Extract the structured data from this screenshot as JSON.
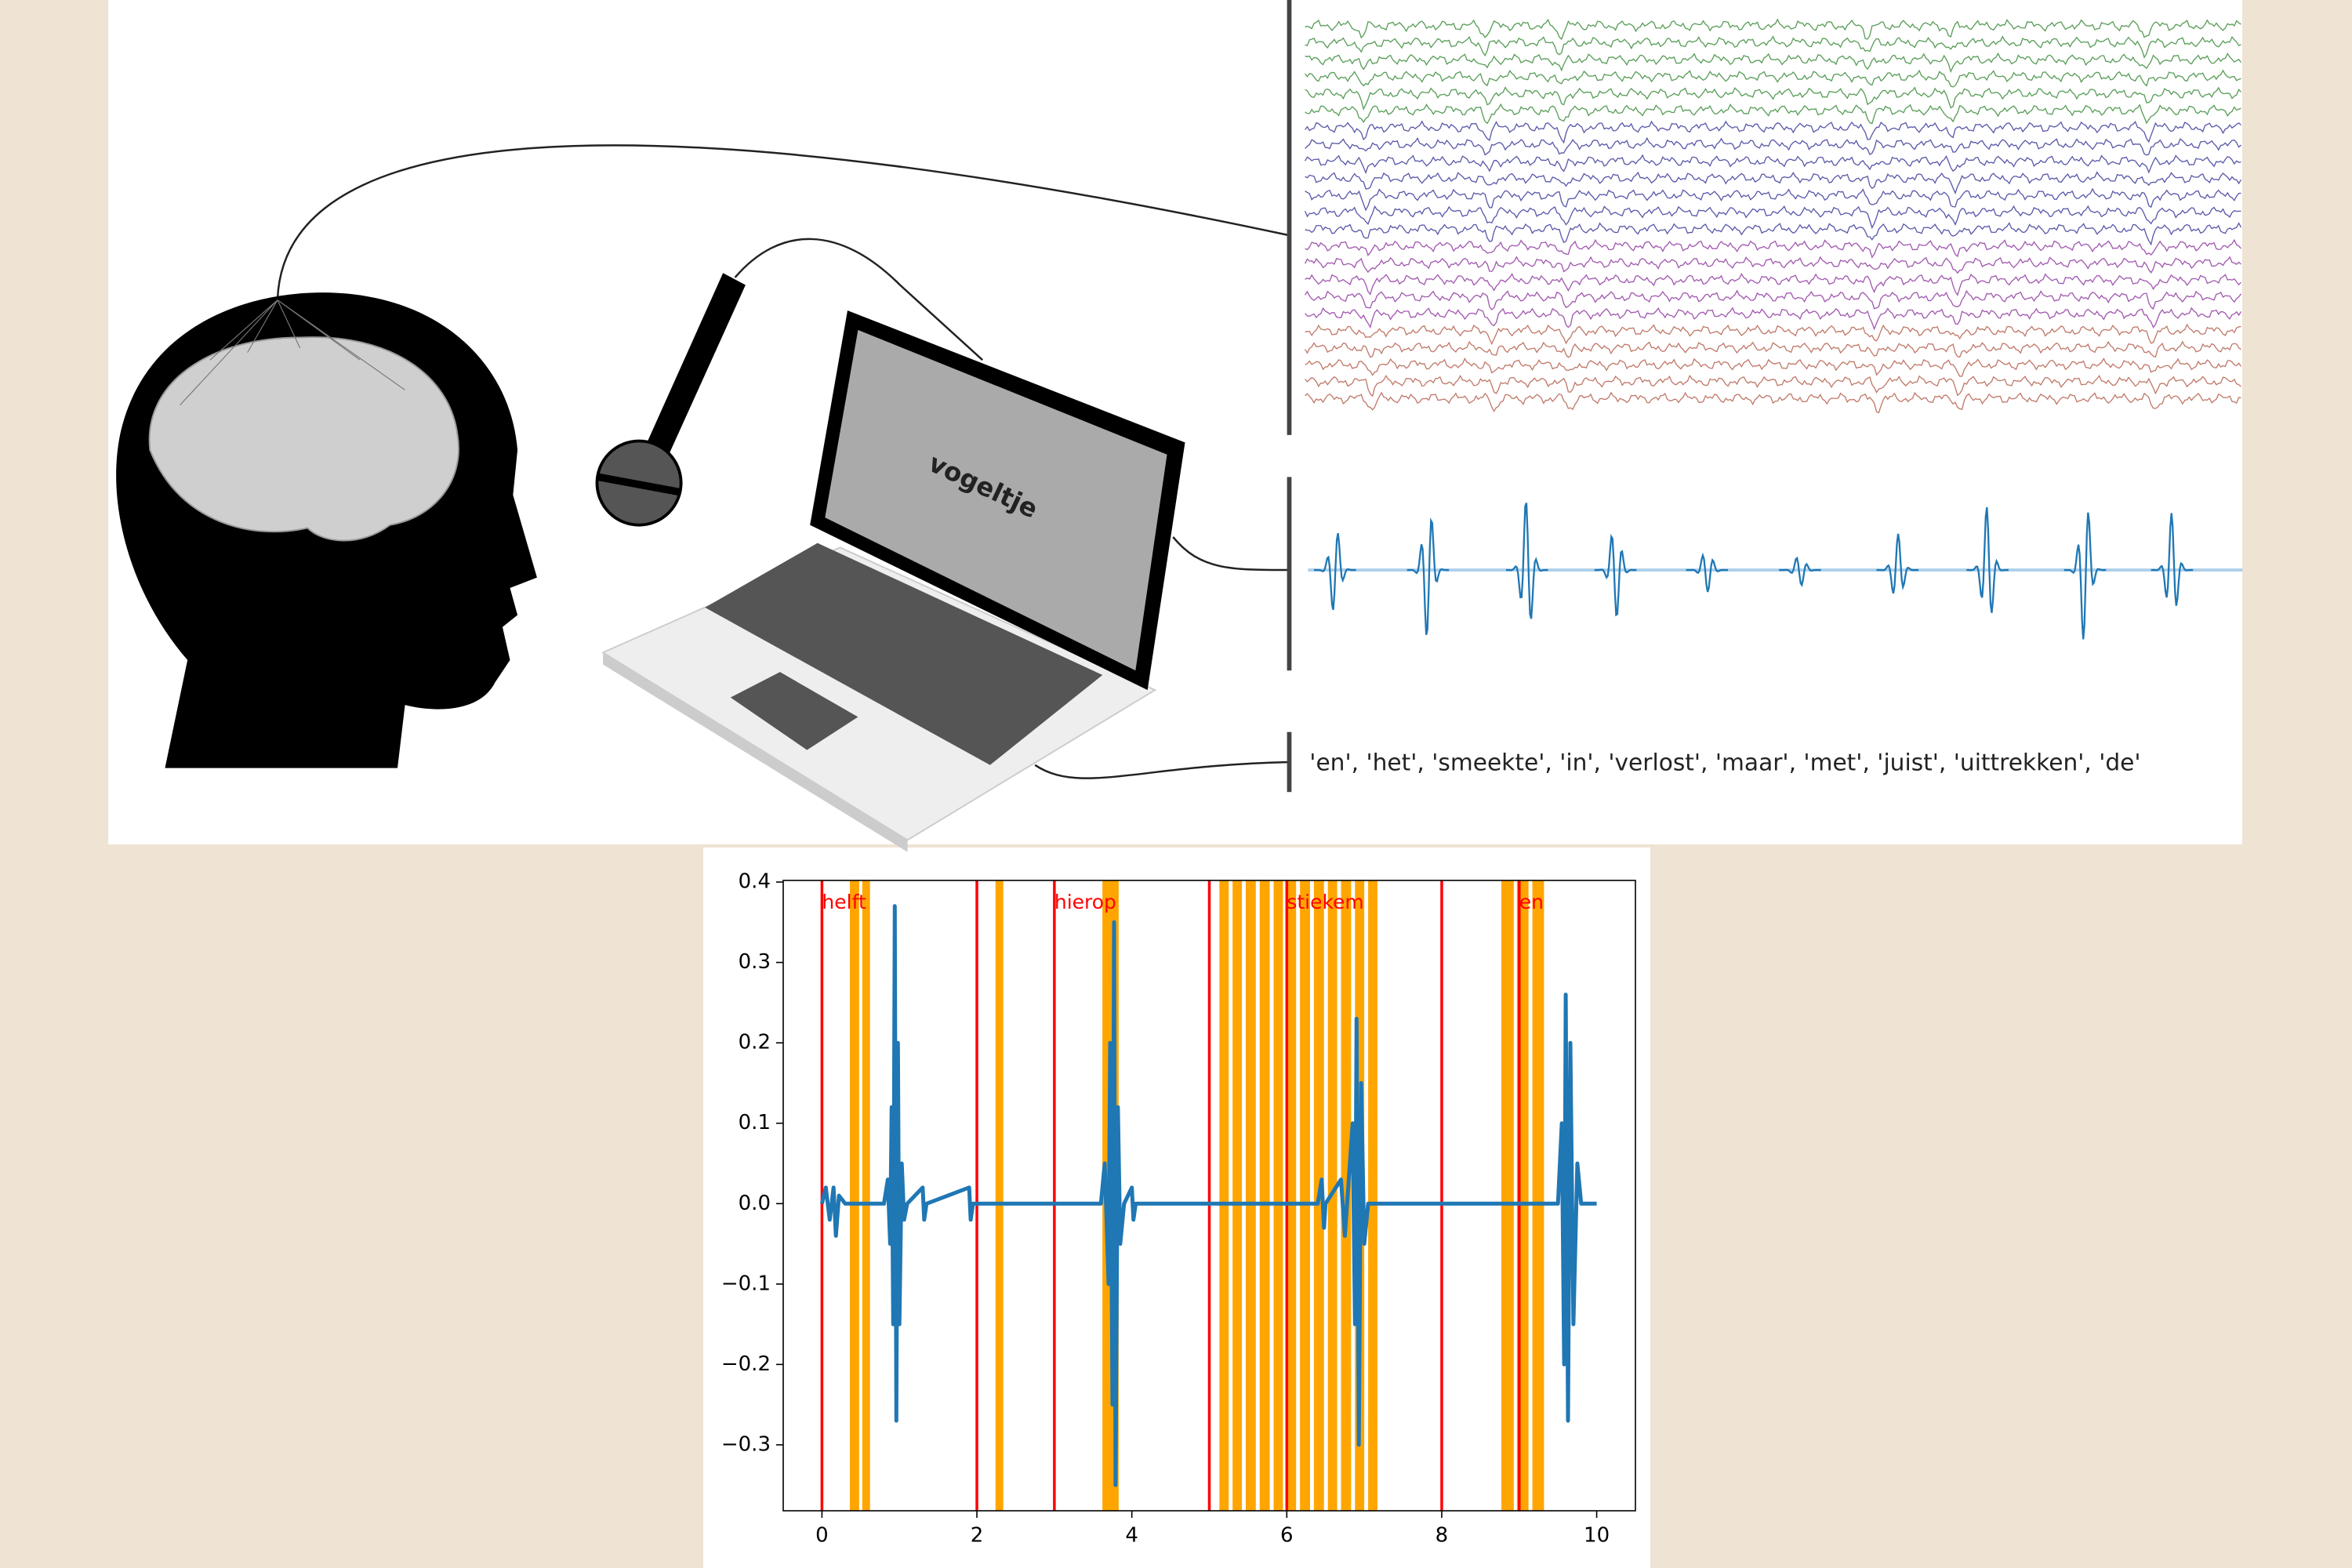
{
  "figure": {
    "screen_word": "vogeltje",
    "word_list": "'en', 'het', 'smeekte', 'in', 'verlost', 'maar', 'met', 'juist', 'uittrekken', 'de'"
  },
  "chart_data": {
    "type": "line",
    "color": "#1f77b4",
    "x": [
      0,
      0.05,
      0.1,
      0.15,
      0.18,
      0.22,
      0.3,
      0.8,
      0.85,
      0.88,
      0.9,
      0.92,
      0.94,
      0.96,
      0.98,
      1.0,
      1.03,
      1.06,
      1.1,
      1.3,
      1.32,
      1.35,
      1.9,
      1.92,
      1.95,
      3.6,
      3.65,
      3.7,
      3.72,
      3.75,
      3.77,
      3.79,
      3.82,
      3.85,
      3.9,
      4.0,
      4.02,
      4.05,
      6.4,
      6.45,
      6.48,
      6.5,
      6.7,
      6.75,
      6.85,
      6.88,
      6.9,
      6.93,
      6.96,
      7.0,
      7.05,
      9.5,
      9.55,
      9.58,
      9.6,
      9.63,
      9.66,
      9.7,
      9.75,
      9.8,
      10
    ],
    "values": [
      0,
      0.02,
      -0.02,
      0.02,
      -0.04,
      0.01,
      0,
      0,
      0.03,
      -0.05,
      0.12,
      -0.15,
      0.37,
      -0.27,
      0.2,
      -0.15,
      0.05,
      -0.02,
      0,
      0.02,
      -0.02,
      0,
      0.02,
      -0.02,
      0,
      0,
      0.05,
      -0.1,
      0.2,
      -0.25,
      0.35,
      -0.35,
      0.12,
      -0.05,
      0,
      0.02,
      -0.02,
      0,
      0,
      0.03,
      -0.03,
      0,
      0.03,
      -0.04,
      0.1,
      -0.15,
      0.23,
      -0.3,
      0.15,
      -0.05,
      0,
      0,
      0.1,
      -0.2,
      0.26,
      -0.27,
      0.2,
      -0.15,
      0.05,
      0,
      0
    ],
    "vlines": [
      0,
      2,
      3,
      5,
      6,
      8,
      9
    ],
    "vline_color": "#ff0000",
    "annotations": [
      {
        "x": 0,
        "text": "helft"
      },
      {
        "x": 3,
        "text": "hierop"
      },
      {
        "x": 6,
        "text": "stiekem"
      },
      {
        "x": 9,
        "text": "en"
      }
    ],
    "spans": [
      [
        0.36,
        0.48
      ],
      [
        0.52,
        0.62
      ],
      [
        2.24,
        2.34
      ],
      [
        3.62,
        3.83
      ],
      [
        5.13,
        5.25
      ],
      [
        5.3,
        5.42
      ],
      [
        5.47,
        5.6
      ],
      [
        5.65,
        5.78
      ],
      [
        5.83,
        5.95
      ],
      [
        6.0,
        6.12
      ],
      [
        6.17,
        6.3
      ],
      [
        6.35,
        6.48
      ],
      [
        6.53,
        6.65
      ],
      [
        6.7,
        6.83
      ],
      [
        6.88,
        7.0
      ],
      [
        7.05,
        7.17
      ],
      [
        8.77,
        8.93
      ],
      [
        8.97,
        9.12
      ],
      [
        9.17,
        9.32
      ]
    ],
    "span_color": "#ffa500",
    "xlim": [
      -0.5,
      10.5
    ],
    "xticks": [
      0,
      2,
      4,
      6,
      8,
      10
    ],
    "ylim": [
      -0.382,
      0.402
    ],
    "yticks": [
      {
        "value": -0.3,
        "label": "−0.3"
      },
      {
        "value": -0.2,
        "label": "−0.2"
      },
      {
        "value": -0.1,
        "label": "−0.1"
      },
      {
        "value": 0,
        "label": "0.0"
      },
      0.1,
      0.2,
      0.3,
      0.4
    ]
  }
}
